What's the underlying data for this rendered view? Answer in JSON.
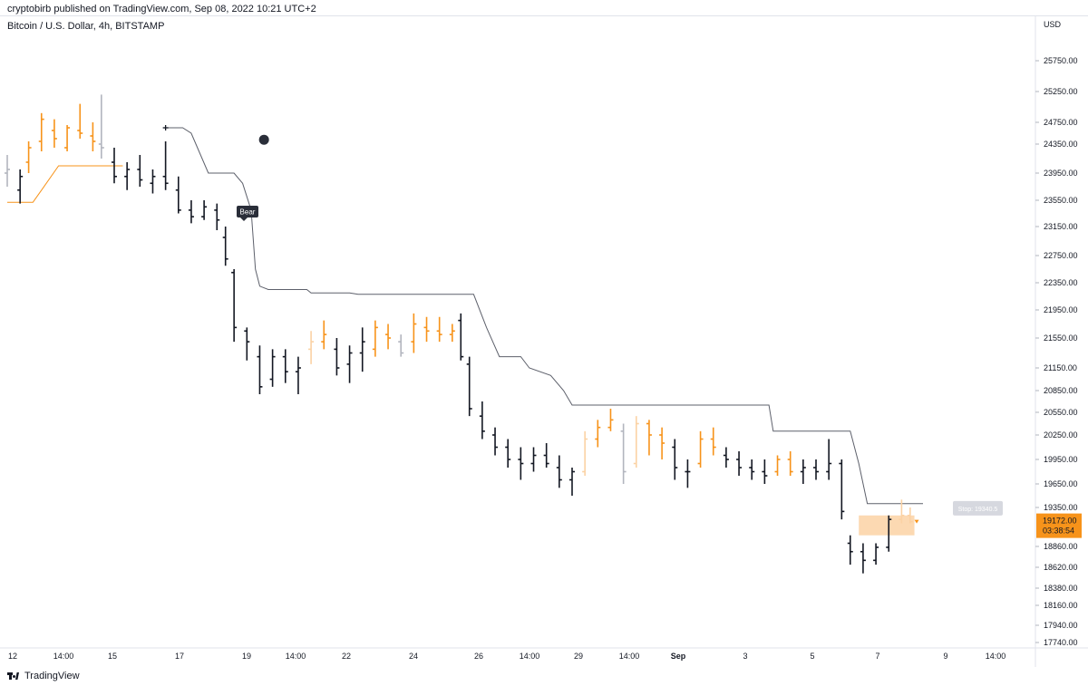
{
  "header": {
    "published": "cryptobirb published on TradingView.com, Sep 08, 2022 10:21 UTC+2"
  },
  "symbol": {
    "line": "Bitcoin / U.S. Dollar, 4h, BITSTAMP"
  },
  "price_axis": {
    "currency": "USD"
  },
  "footer": {
    "brand": "TradingView",
    "logo_icon": "tradingview-logo-icon"
  },
  "colors": {
    "bull": "#f7931a",
    "bull_light": "#fbd2a4",
    "bear": "#131722",
    "neutral": "#b2b5be",
    "stop_line": "#5d606b",
    "support_line": "#f7931a",
    "price_label_bg": "#f7931a",
    "stop_label_bg": "#d1d4dc"
  },
  "chart_data": {
    "type": "ohlc",
    "price_ticks": [
      "25750.00",
      "25250.00",
      "24750.00",
      "24350.00",
      "23950.00",
      "23550.00",
      "23150.00",
      "22750.00",
      "22350.00",
      "21950.00",
      "21550.00",
      "21150.00",
      "20850.00",
      "20550.00",
      "20250.00",
      "19950.00",
      "19650.00",
      "19350.00",
      "18860.00",
      "18620.00",
      "18380.00",
      "18160.00",
      "17940.00",
      "17740.00"
    ],
    "time_ticks": [
      {
        "label": "12",
        "bold": false
      },
      {
        "label": "14:00",
        "bold": false
      },
      {
        "label": "15",
        "bold": false
      },
      {
        "label": "17",
        "bold": false
      },
      {
        "label": "19",
        "bold": false
      },
      {
        "label": "14:00",
        "bold": false
      },
      {
        "label": "22",
        "bold": false
      },
      {
        "label": "24",
        "bold": false
      },
      {
        "label": "26",
        "bold": false
      },
      {
        "label": "14:00",
        "bold": false
      },
      {
        "label": "29",
        "bold": false
      },
      {
        "label": "14:00",
        "bold": false
      },
      {
        "label": "Sep",
        "bold": true
      },
      {
        "label": "3",
        "bold": false
      },
      {
        "label": "5",
        "bold": false
      },
      {
        "label": "7",
        "bold": false
      },
      {
        "label": "9",
        "bold": false
      },
      {
        "label": "14:00",
        "bold": false
      }
    ],
    "ohlc_segments": [
      {
        "t": 0,
        "o": 23950,
        "h": 24200,
        "l": 23750,
        "c": 24000,
        "tone": "neutral"
      },
      {
        "t": 3,
        "o": 23700,
        "h": 24000,
        "l": 23500,
        "c": 23900,
        "tone": "bear"
      },
      {
        "t": 5,
        "o": 24100,
        "h": 24400,
        "l": 23950,
        "c": 24300,
        "tone": "bull"
      },
      {
        "t": 8,
        "o": 24400,
        "h": 24900,
        "l": 24250,
        "c": 24800,
        "tone": "bull"
      },
      {
        "t": 11,
        "o": 24600,
        "h": 24800,
        "l": 24300,
        "c": 24450,
        "tone": "bull"
      },
      {
        "t": 14,
        "o": 24300,
        "h": 24700,
        "l": 24250,
        "c": 24650,
        "tone": "bull"
      },
      {
        "t": 17,
        "o": 24600,
        "h": 25050,
        "l": 24450,
        "c": 24550,
        "tone": "bull"
      },
      {
        "t": 20,
        "o": 24500,
        "h": 24750,
        "l": 24250,
        "c": 24400,
        "tone": "bull"
      },
      {
        "t": 22,
        "o": 24350,
        "h": 25200,
        "l": 24150,
        "c": 24300,
        "tone": "neutral"
      },
      {
        "t": 25,
        "o": 24100,
        "h": 24300,
        "l": 23800,
        "c": 23900,
        "tone": "bear"
      },
      {
        "t": 28,
        "o": 23900,
        "h": 24100,
        "l": 23700,
        "c": 24000,
        "tone": "bear"
      },
      {
        "t": 31,
        "o": 24000,
        "h": 24200,
        "l": 23750,
        "c": 23850,
        "tone": "bear"
      },
      {
        "t": 34,
        "o": 23800,
        "h": 24000,
        "l": 23650,
        "c": 23900,
        "tone": "bear"
      },
      {
        "t": 37,
        "o": 23900,
        "h": 24400,
        "l": 23700,
        "c": 23800,
        "tone": "bear"
      },
      {
        "t": 40,
        "o": 23700,
        "h": 23900,
        "l": 23350,
        "c": 23400,
        "tone": "bear"
      },
      {
        "t": 43,
        "o": 23400,
        "h": 23550,
        "l": 23200,
        "c": 23300,
        "tone": "bear"
      },
      {
        "t": 46,
        "o": 23300,
        "h": 23550,
        "l": 23250,
        "c": 23450,
        "tone": "bear"
      },
      {
        "t": 49,
        "o": 23400,
        "h": 23500,
        "l": 23100,
        "c": 23250,
        "tone": "bear"
      },
      {
        "t": 51,
        "o": 23000,
        "h": 23150,
        "l": 22600,
        "c": 22700,
        "tone": "bear"
      },
      {
        "t": 53,
        "o": 22500,
        "h": 22550,
        "l": 21500,
        "c": 21700,
        "tone": "bear"
      },
      {
        "t": 56,
        "o": 21650,
        "h": 21700,
        "l": 21250,
        "c": 21500,
        "tone": "bear"
      },
      {
        "t": 59,
        "o": 21300,
        "h": 21450,
        "l": 20800,
        "c": 20900,
        "tone": "bear"
      },
      {
        "t": 62,
        "o": 21000,
        "h": 21400,
        "l": 20900,
        "c": 21300,
        "tone": "bear"
      },
      {
        "t": 65,
        "o": 21300,
        "h": 21400,
        "l": 20950,
        "c": 21100,
        "tone": "bear"
      },
      {
        "t": 68,
        "o": 21100,
        "h": 21300,
        "l": 20800,
        "c": 21150,
        "tone": "bear"
      },
      {
        "t": 71,
        "o": 21400,
        "h": 21650,
        "l": 21200,
        "c": 21500,
        "tone": "bull_light"
      },
      {
        "t": 74,
        "o": 21500,
        "h": 21800,
        "l": 21400,
        "c": 21600,
        "tone": "bull"
      },
      {
        "t": 77,
        "o": 21400,
        "h": 21550,
        "l": 21050,
        "c": 21150,
        "tone": "bear"
      },
      {
        "t": 80,
        "o": 21200,
        "h": 21450,
        "l": 20950,
        "c": 21350,
        "tone": "bear"
      },
      {
        "t": 83,
        "o": 21350,
        "h": 21700,
        "l": 21100,
        "c": 21500,
        "tone": "bear"
      },
      {
        "t": 86,
        "o": 21400,
        "h": 21800,
        "l": 21300,
        "c": 21700,
        "tone": "bull"
      },
      {
        "t": 89,
        "o": 21600,
        "h": 21750,
        "l": 21400,
        "c": 21550,
        "tone": "bull"
      },
      {
        "t": 92,
        "o": 21500,
        "h": 21600,
        "l": 21300,
        "c": 21350,
        "tone": "neutral"
      },
      {
        "t": 95,
        "o": 21500,
        "h": 21900,
        "l": 21350,
        "c": 21750,
        "tone": "bull"
      },
      {
        "t": 98,
        "o": 21700,
        "h": 21850,
        "l": 21500,
        "c": 21650,
        "tone": "bull"
      },
      {
        "t": 101,
        "o": 21650,
        "h": 21850,
        "l": 21500,
        "c": 21600,
        "tone": "bull"
      },
      {
        "t": 104,
        "o": 21600,
        "h": 21750,
        "l": 21500,
        "c": 21650,
        "tone": "bull"
      },
      {
        "t": 106,
        "o": 21800,
        "h": 21900,
        "l": 21250,
        "c": 21300,
        "tone": "bear"
      },
      {
        "t": 108,
        "o": 21200,
        "h": 21300,
        "l": 20500,
        "c": 20600,
        "tone": "bear"
      },
      {
        "t": 111,
        "o": 20500,
        "h": 20700,
        "l": 20200,
        "c": 20300,
        "tone": "bear"
      },
      {
        "t": 114,
        "o": 20250,
        "h": 20350,
        "l": 20000,
        "c": 20100,
        "tone": "bear"
      },
      {
        "t": 117,
        "o": 20100,
        "h": 20200,
        "l": 19850,
        "c": 19950,
        "tone": "bear"
      },
      {
        "t": 120,
        "o": 19950,
        "h": 20100,
        "l": 19700,
        "c": 19900,
        "tone": "bear"
      },
      {
        "t": 123,
        "o": 19900,
        "h": 20100,
        "l": 19800,
        "c": 20000,
        "tone": "bear"
      },
      {
        "t": 126,
        "o": 20000,
        "h": 20150,
        "l": 19850,
        "c": 19900,
        "tone": "bear"
      },
      {
        "t": 129,
        "o": 19850,
        "h": 20000,
        "l": 19600,
        "c": 19700,
        "tone": "bear"
      },
      {
        "t": 132,
        "o": 19700,
        "h": 19850,
        "l": 19500,
        "c": 19800,
        "tone": "bear"
      },
      {
        "t": 135,
        "o": 19800,
        "h": 20300,
        "l": 19750,
        "c": 20200,
        "tone": "bull_light"
      },
      {
        "t": 138,
        "o": 20200,
        "h": 20450,
        "l": 20100,
        "c": 20350,
        "tone": "bull"
      },
      {
        "t": 141,
        "o": 20350,
        "h": 20600,
        "l": 20300,
        "c": 20450,
        "tone": "bull"
      },
      {
        "t": 144,
        "o": 20300,
        "h": 20400,
        "l": 19650,
        "c": 19800,
        "tone": "neutral"
      },
      {
        "t": 147,
        "o": 19900,
        "h": 20500,
        "l": 19850,
        "c": 20400,
        "tone": "bull_light"
      },
      {
        "t": 150,
        "o": 20400,
        "h": 20450,
        "l": 20000,
        "c": 20250,
        "tone": "bull"
      },
      {
        "t": 153,
        "o": 20250,
        "h": 20350,
        "l": 19950,
        "c": 20150,
        "tone": "bull"
      },
      {
        "t": 156,
        "o": 20100,
        "h": 20200,
        "l": 19700,
        "c": 19850,
        "tone": "bear"
      },
      {
        "t": 159,
        "o": 19800,
        "h": 19950,
        "l": 19600,
        "c": 19800,
        "tone": "bear"
      },
      {
        "t": 162,
        "o": 19900,
        "h": 20300,
        "l": 19850,
        "c": 20200,
        "tone": "bull"
      },
      {
        "t": 165,
        "o": 20200,
        "h": 20350,
        "l": 20000,
        "c": 20100,
        "tone": "bull"
      },
      {
        "t": 168,
        "o": 20000,
        "h": 20100,
        "l": 19850,
        "c": 19950,
        "tone": "bear"
      },
      {
        "t": 171,
        "o": 19950,
        "h": 20050,
        "l": 19750,
        "c": 19850,
        "tone": "bear"
      },
      {
        "t": 174,
        "o": 19850,
        "h": 19950,
        "l": 19700,
        "c": 19800,
        "tone": "bear"
      },
      {
        "t": 177,
        "o": 19800,
        "h": 19950,
        "l": 19650,
        "c": 19750,
        "tone": "bear"
      },
      {
        "t": 180,
        "o": 19800,
        "h": 20000,
        "l": 19750,
        "c": 19950,
        "tone": "bull"
      },
      {
        "t": 183,
        "o": 19950,
        "h": 20050,
        "l": 19750,
        "c": 19800,
        "tone": "bull"
      },
      {
        "t": 186,
        "o": 19800,
        "h": 19950,
        "l": 19650,
        "c": 19850,
        "tone": "bear"
      },
      {
        "t": 189,
        "o": 19850,
        "h": 19950,
        "l": 19700,
        "c": 19800,
        "tone": "bear"
      },
      {
        "t": 192,
        "o": 19800,
        "h": 20200,
        "l": 19700,
        "c": 19900,
        "tone": "bear"
      },
      {
        "t": 195,
        "o": 19900,
        "h": 19950,
        "l": 19200,
        "c": 19300,
        "tone": "bear"
      },
      {
        "t": 197,
        "o": 18900,
        "h": 19000,
        "l": 18650,
        "c": 18800,
        "tone": "bear"
      },
      {
        "t": 200,
        "o": 18800,
        "h": 18900,
        "l": 18550,
        "c": 18700,
        "tone": "bear"
      },
      {
        "t": 203,
        "o": 18700,
        "h": 18900,
        "l": 18650,
        "c": 18850,
        "tone": "bear"
      },
      {
        "t": 206,
        "o": 18850,
        "h": 19250,
        "l": 18800,
        "c": 19200,
        "tone": "bear"
      },
      {
        "t": 209,
        "o": 19200,
        "h": 19450,
        "l": 19150,
        "c": 19250,
        "tone": "bull_light"
      },
      {
        "t": 211,
        "o": 19250,
        "h": 19350,
        "l": 19150,
        "c": 19172,
        "tone": "bull_light"
      }
    ],
    "stop_line": [
      {
        "t": 37,
        "v": 24650
      },
      {
        "t": 41,
        "v": 24650
      },
      {
        "t": 43,
        "v": 24550
      },
      {
        "t": 47,
        "v": 23950
      },
      {
        "t": 53,
        "v": 23950
      },
      {
        "t": 55,
        "v": 23800
      },
      {
        "t": 57,
        "v": 23400
      },
      {
        "t": 58,
        "v": 22550
      },
      {
        "t": 59,
        "v": 22300
      },
      {
        "t": 61,
        "v": 22250
      },
      {
        "t": 70,
        "v": 22250
      },
      {
        "t": 71,
        "v": 22200
      },
      {
        "t": 80,
        "v": 22200
      },
      {
        "t": 82,
        "v": 22180
      },
      {
        "t": 109,
        "v": 22180
      },
      {
        "t": 112,
        "v": 21700
      },
      {
        "t": 115,
        "v": 21300
      },
      {
        "t": 120,
        "v": 21300
      },
      {
        "t": 122,
        "v": 21150
      },
      {
        "t": 127,
        "v": 21050
      },
      {
        "t": 130,
        "v": 20850
      },
      {
        "t": 132,
        "v": 20650
      },
      {
        "t": 178,
        "v": 20650
      },
      {
        "t": 179,
        "v": 20300
      },
      {
        "t": 197,
        "v": 20300
      },
      {
        "t": 199,
        "v": 19900
      },
      {
        "t": 201,
        "v": 19400
      },
      {
        "t": 214,
        "v": 19400
      }
    ],
    "support_line": [
      {
        "t": 0,
        "v": 23520
      },
      {
        "t": 6,
        "v": 23520
      },
      {
        "t": 8,
        "v": 23700
      },
      {
        "t": 12,
        "v": 24050
      },
      {
        "t": 27,
        "v": 24050
      }
    ],
    "bear_label": "Bear",
    "stop_label": "Stop: 19340.5",
    "stop_value": 19340.5,
    "last_price": "19172.00",
    "last_price_value": 19172,
    "countdown": "03:38:54",
    "entry_zone": {
      "from": 19000,
      "to": 19250,
      "t_start": 199,
      "t_end": 212
    },
    "marker_dot": {
      "t": 60,
      "v": 24430
    },
    "plus_marker": {
      "t": 37,
      "v": 24650
    }
  }
}
